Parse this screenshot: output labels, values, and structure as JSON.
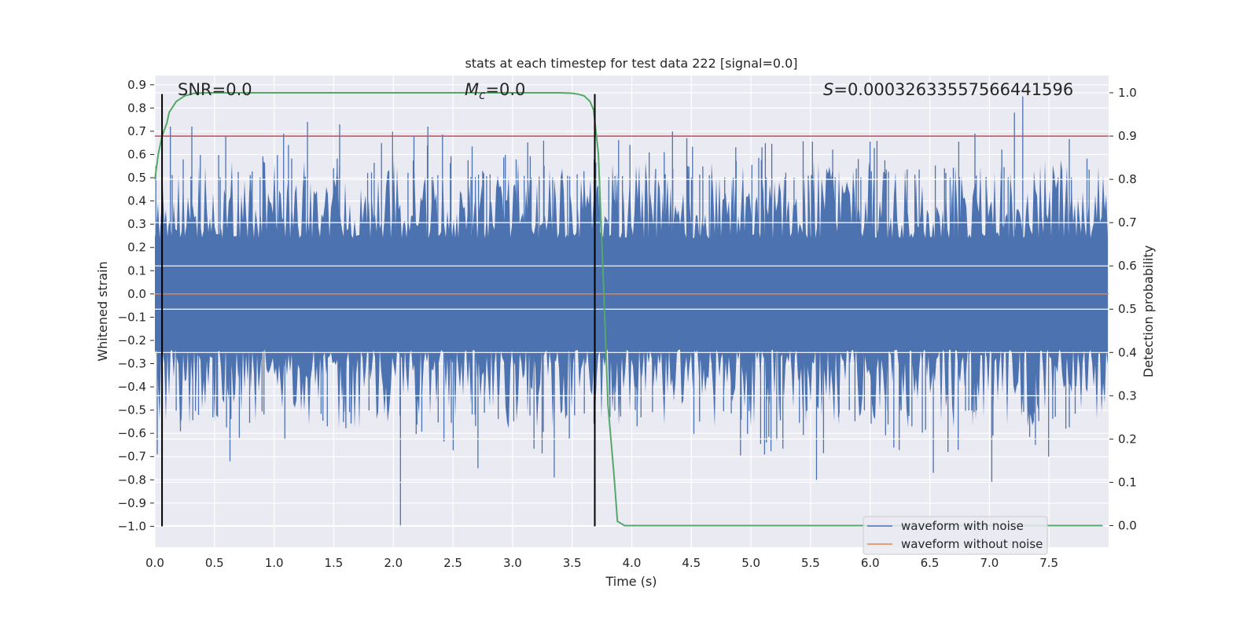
{
  "chart_data": {
    "type": "line",
    "title": "stats at each timestep for test data 222 [signal=0.0]",
    "xlabel": "Time (s)",
    "ylabel": "Whitened strain",
    "y2label": "Detection probability",
    "xlim": [
      0.0,
      8.0
    ],
    "ylim": [
      -1.09,
      0.94
    ],
    "y2lim": [
      -0.05,
      1.04
    ],
    "xticks": [
      "0.0",
      "0.5",
      "1.0",
      "1.5",
      "2.0",
      "2.5",
      "3.0",
      "3.5",
      "4.0",
      "4.5",
      "5.0",
      "5.5",
      "6.0",
      "6.5",
      "7.0",
      "7.5"
    ],
    "yticks": [
      "0.9",
      "0.8",
      "0.7",
      "0.6",
      "0.5",
      "0.4",
      "0.3",
      "0.2",
      "0.1",
      "0.0",
      "−0.1",
      "−0.2",
      "−0.3",
      "−0.4",
      "−0.5",
      "−0.6",
      "−0.7",
      "−0.8",
      "−0.9",
      "−1.0"
    ],
    "y2ticks": [
      "1.0",
      "0.9",
      "0.8",
      "0.7",
      "0.6",
      "0.5",
      "0.4",
      "0.3",
      "0.2",
      "0.1",
      "0.0"
    ],
    "annotations": {
      "snr_label": "SNR=0.0",
      "mc_symbol": "M",
      "mc_subscript": "c",
      "mc_value": "=0.0",
      "s_symbol": "S",
      "s_value": "=0.00032633557566441596"
    },
    "vertical_markers_time": [
      0.06,
      3.69
    ],
    "threshold_probability": 0.9,
    "series": [
      {
        "name": "waveform with noise",
        "axis": "left",
        "color": "#4c72b0",
        "description": "noise samples spanning 0.0-8.0 s, mostly within ±0.55 with spikes up to 0.85 and down to -1.0",
        "notable_peaks": [
          [
            0.13,
            0.72
          ],
          [
            0.31,
            0.72
          ],
          [
            1.28,
            0.74
          ],
          [
            1.55,
            0.73
          ],
          [
            2.29,
            0.72
          ],
          [
            7.21,
            0.78
          ],
          [
            7.28,
            0.85
          ]
        ],
        "notable_troughs": [
          [
            0.02,
            -0.69
          ],
          [
            0.63,
            -0.72
          ],
          [
            2.06,
            -1.0
          ],
          [
            2.71,
            -0.75
          ],
          [
            3.35,
            -0.79
          ],
          [
            5.55,
            -0.8
          ],
          [
            6.53,
            -0.77
          ],
          [
            7.02,
            -0.81
          ]
        ]
      },
      {
        "name": "waveform without noise",
        "axis": "left",
        "color": "#dd8452",
        "x": [
          0.0,
          8.0
        ],
        "values": [
          0.0,
          0.0
        ]
      },
      {
        "name": "detection probability",
        "axis": "right",
        "color": "#55a868",
        "x": [
          0.0,
          0.03,
          0.06,
          0.1,
          0.12,
          0.18,
          0.25,
          0.33,
          0.45,
          0.8,
          1.5,
          2.5,
          3.2,
          3.4,
          3.5,
          3.55,
          3.6,
          3.65,
          3.68,
          3.72,
          3.76,
          3.8,
          3.85,
          3.88,
          3.94,
          4.2,
          7.95
        ],
        "values": [
          0.8,
          0.86,
          0.9,
          0.93,
          0.955,
          0.98,
          0.993,
          0.999,
          1.0,
          1.0,
          1.0,
          1.0,
          1.0,
          1.0,
          0.999,
          0.997,
          0.993,
          0.98,
          0.96,
          0.86,
          0.58,
          0.28,
          0.12,
          0.01,
          0.0,
          0.0,
          0.0
        ]
      },
      {
        "name": "threshold",
        "axis": "right",
        "color": "#c44e52",
        "x": [
          0.0,
          8.0
        ],
        "values": [
          0.9,
          0.9
        ]
      }
    ],
    "legend": [
      "waveform with noise",
      "waveform without noise"
    ],
    "legend_position": "lower-right",
    "grid": true
  }
}
